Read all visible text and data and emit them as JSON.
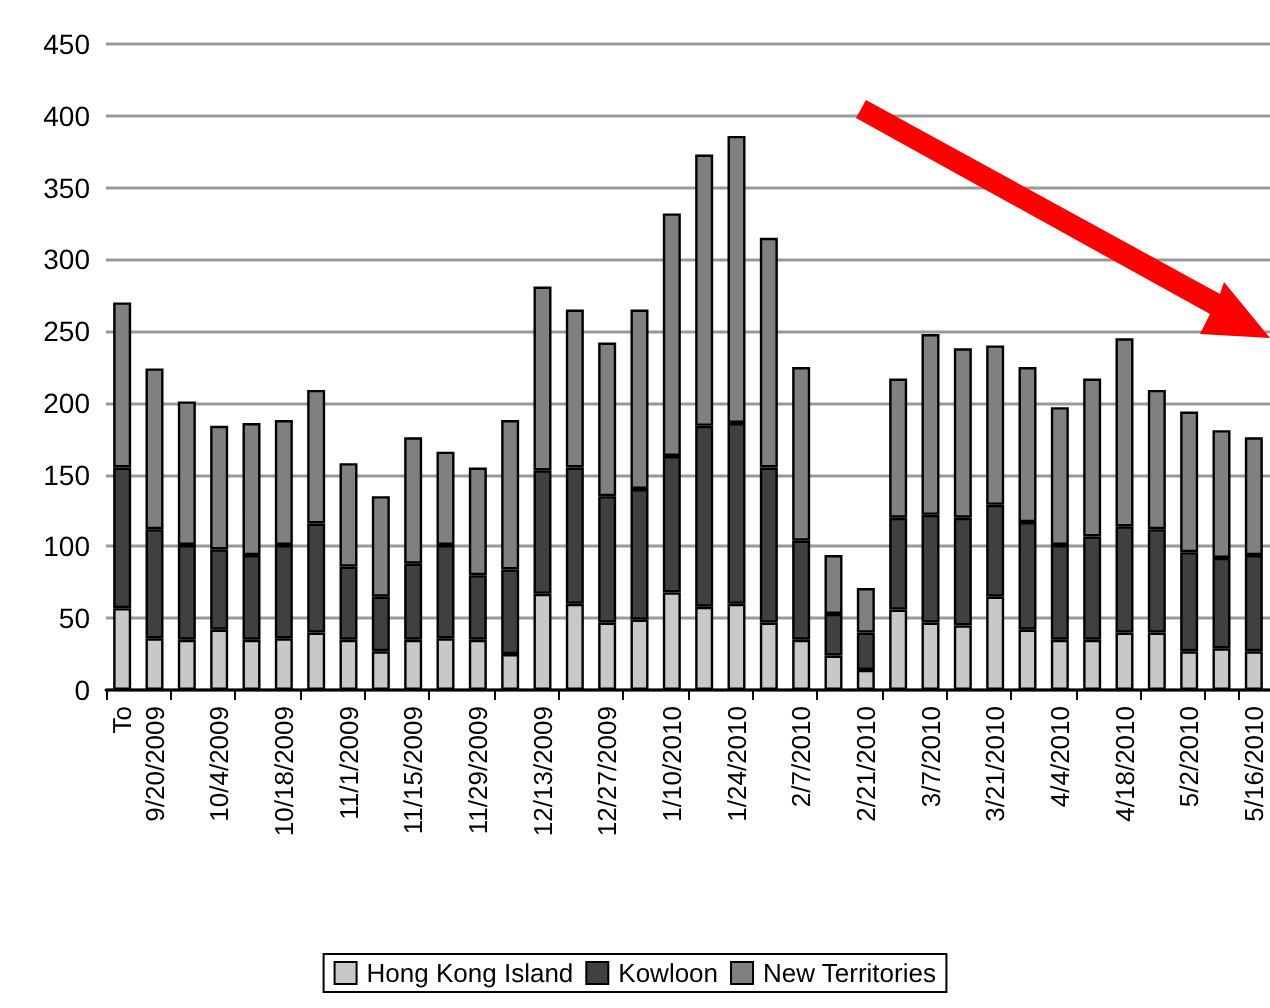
{
  "chart_data": {
    "type": "bar",
    "stacked": true,
    "categories": [
      "To",
      "9/20/2009",
      null,
      "10/4/2009",
      null,
      "10/18/2009",
      null,
      "11/1/2009",
      null,
      "11/15/2009",
      null,
      "11/29/2009",
      null,
      "12/13/2009",
      null,
      "12/27/2009",
      null,
      "1/10/2010",
      null,
      "1/24/2010",
      null,
      "2/7/2010",
      null,
      "2/21/2010",
      null,
      "3/7/2010",
      null,
      "3/21/2010",
      null,
      "4/4/2010",
      null,
      "4/18/2010",
      null,
      "5/2/2010",
      null,
      "5/16/2010"
    ],
    "series": [
      {
        "name": "Hong Kong Island",
        "color": "#c8c8c8",
        "values": [
          57,
          36,
          35,
          42,
          35,
          36,
          40,
          35,
          27,
          35,
          36,
          35,
          25,
          67,
          60,
          47,
          49,
          68,
          58,
          60,
          47,
          35,
          24,
          14,
          56,
          47,
          45,
          65,
          42,
          35,
          35,
          40,
          40,
          27,
          29,
          27
        ]
      },
      {
        "name": "Kowloon",
        "color": "#404040",
        "values": [
          98,
          76,
          66,
          56,
          59,
          65,
          76,
          51,
          38,
          53,
          65,
          45,
          59,
          86,
          95,
          88,
          91,
          95,
          126,
          126,
          108,
          69,
          29,
          26,
          64,
          75,
          75,
          64,
          75,
          66,
          72,
          74,
          72,
          69,
          63,
          67
        ]
      },
      {
        "name": "New Territories",
        "color": "#808080",
        "values": [
          115,
          112,
          100,
          86,
          92,
          87,
          93,
          72,
          70,
          88,
          65,
          75,
          104,
          128,
          110,
          107,
          125,
          169,
          189,
          200,
          160,
          121,
          41,
          31,
          97,
          126,
          118,
          111,
          108,
          96,
          110,
          131,
          97,
          98,
          89,
          82
        ]
      }
    ],
    "ylim": [
      0,
      450
    ],
    "yticks": [
      0,
      50,
      100,
      150,
      200,
      250,
      300,
      350,
      400,
      450
    ],
    "grid": "y",
    "legend": "bottom"
  }
}
